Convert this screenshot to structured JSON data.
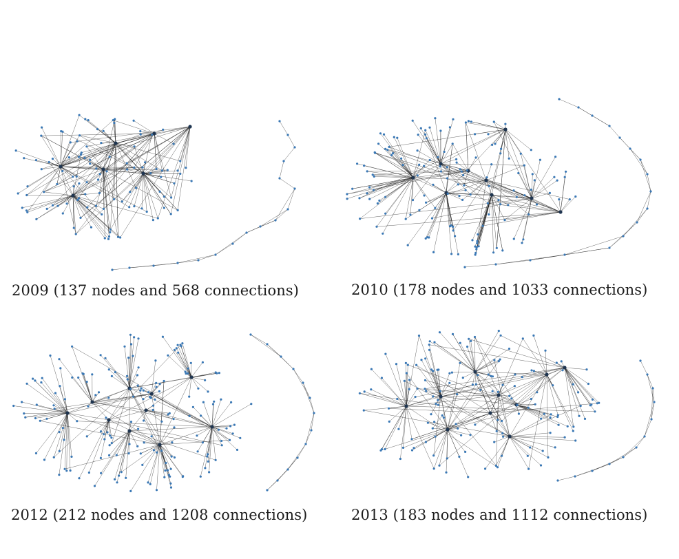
{
  "colors": {
    "node": "#3a78b5",
    "edge": "#1a1a1a",
    "text": "#1c1c1c",
    "background": "#ffffff"
  },
  "panels": [
    {
      "id": "p2009",
      "caption": "2009 (137 nodes and 568 connections)",
      "year": 2009,
      "nodes": 137,
      "connections": 568
    },
    {
      "id": "p2010",
      "caption": "2010 (178 nodes and 1033 connections)",
      "year": 2010,
      "nodes": 178,
      "connections": 1033
    },
    {
      "id": "p2012",
      "caption": "2012 (212 nodes and 1208 connections)",
      "year": 2012,
      "nodes": 212,
      "connections": 1208
    },
    {
      "id": "p2013",
      "caption": "2013 (183 nodes and 1112 connections)",
      "year": 2013,
      "nodes": 183,
      "connections": 1112
    }
  ]
}
